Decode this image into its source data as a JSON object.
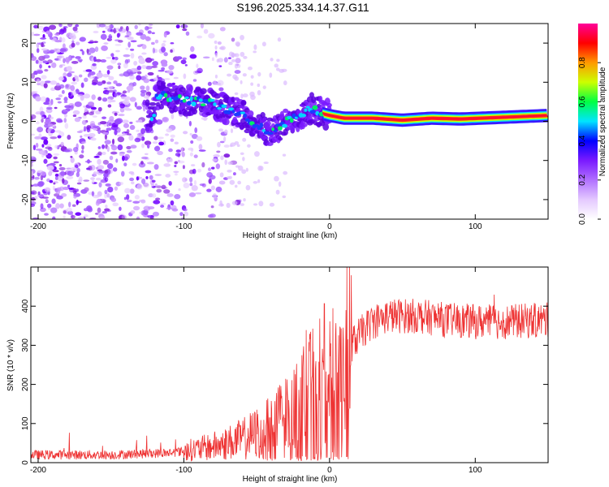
{
  "title": "S196.2025.334.14.37.G11",
  "chart_data": [
    {
      "type": "heatmap",
      "name": "spectrogram",
      "xlabel": "Height of straight line (km)",
      "ylabel": "Frequency (Hz)",
      "xlim": [
        -205,
        150
      ],
      "ylim": [
        -25,
        25
      ],
      "xticks": [
        -200,
        -100,
        0,
        100
      ],
      "xtick_labels": [
        "-200",
        "-100",
        "0",
        "100"
      ],
      "yticks": [
        -20,
        -10,
        0,
        10,
        20
      ],
      "ytick_labels": [
        "-20",
        "-10",
        "0",
        "10",
        "20"
      ],
      "ridge": {
        "x": [
          -120,
          -110,
          -100,
          -90,
          -80,
          -70,
          -60,
          -50,
          -45,
          -40,
          -35,
          -30,
          -20,
          -12,
          -5,
          0,
          10,
          30,
          50,
          70,
          90,
          110,
          130,
          150
        ],
        "y": [
          6.5,
          6,
          5.5,
          5,
          4.5,
          3,
          2,
          -1,
          -2,
          -2.5,
          -1.5,
          0,
          1.5,
          3.5,
          2,
          1.5,
          0.8,
          0.8,
          0.3,
          0.8,
          0.6,
          0.9,
          1.2,
          1.5
        ]
      },
      "noise_region_x": [
        -205,
        -80
      ],
      "colorbar": {
        "label": "Normalized spectral amplitude",
        "range": [
          0,
          1
        ],
        "ticks": [
          "0.0",
          "0.2",
          "0.4",
          "0.6",
          "0.8"
        ],
        "colors": [
          "#ffffff",
          "#e4c9ff",
          "#b070ff",
          "#7a1aff",
          "#0000ff",
          "#00e5ff",
          "#00ff44",
          "#ccff00",
          "#ff9900",
          "#ff0000",
          "#ff0099"
        ]
      }
    },
    {
      "type": "line",
      "name": "snr",
      "xlabel": "Height of straight line (km)",
      "ylabel": "SNR (10 * v/v)",
      "xlim": [
        -205,
        150
      ],
      "ylim": [
        0,
        500
      ],
      "xticks": [
        -200,
        -100,
        0,
        100
      ],
      "xtick_labels": [
        "-200",
        "-100",
        "0",
        "100"
      ],
      "yticks": [
        0,
        100,
        200,
        300,
        400
      ],
      "ytick_labels": [
        "0",
        "100",
        "200",
        "300",
        "400"
      ],
      "color": "#ee3333",
      "series": [
        {
          "name": "SNR",
          "x": [
            -205,
            -150,
            -110,
            -90,
            -75,
            -60,
            -50,
            -40,
            -30,
            -20,
            -10,
            -5,
            0,
            5,
            10,
            15,
            20,
            25,
            30,
            40,
            60,
            80,
            100,
            120,
            150
          ],
          "y": [
            20,
            20,
            25,
            35,
            45,
            60,
            75,
            95,
            120,
            150,
            190,
            210,
            230,
            250,
            270,
            300,
            325,
            345,
            360,
            375,
            375,
            365,
            360,
            360,
            365
          ]
        }
      ]
    }
  ]
}
